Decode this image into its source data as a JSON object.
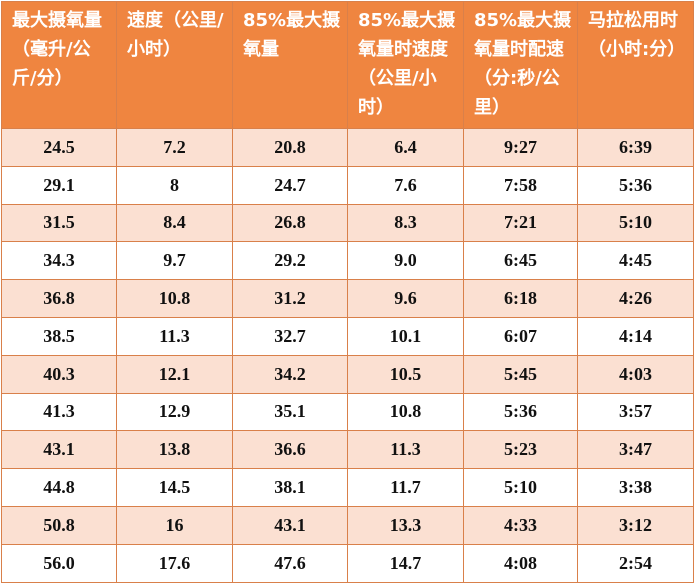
{
  "headers": [
    "最大摄氧量（毫升/公斤/分）",
    "速度（公里/小时）",
    "85%最大摄氧量",
    "85%最大摄氧量时速度（公里/小时）",
    "85%最大摄氧量时配速（分:秒/公里）",
    "马拉松用时（小时:分）"
  ],
  "rows": [
    [
      "24.5",
      "7.2",
      "20.8",
      "6.4",
      "9:27",
      "6:39"
    ],
    [
      "29.1",
      "8",
      "24.7",
      "7.6",
      "7:58",
      "5:36"
    ],
    [
      "31.5",
      "8.4",
      "26.8",
      "8.3",
      "7:21",
      "5:10"
    ],
    [
      "34.3",
      "9.7",
      "29.2",
      "9.0",
      "6:45",
      "4:45"
    ],
    [
      "36.8",
      "10.8",
      "31.2",
      "9.6",
      "6:18",
      "4:26"
    ],
    [
      "38.5",
      "11.3",
      "32.7",
      "10.1",
      "6:07",
      "4:14"
    ],
    [
      "40.3",
      "12.1",
      "34.2",
      "10.5",
      "5:45",
      "4:03"
    ],
    [
      "41.3",
      "12.9",
      "35.1",
      "10.8",
      "5:36",
      "3:57"
    ],
    [
      "43.1",
      "13.8",
      "36.6",
      "11.3",
      "5:23",
      "3:47"
    ],
    [
      "44.8",
      "14.5",
      "38.1",
      "11.7",
      "5:10",
      "3:38"
    ],
    [
      "50.8",
      "16",
      "43.1",
      "13.3",
      "4:33",
      "3:12"
    ],
    [
      "56.0",
      "17.6",
      "47.6",
      "14.7",
      "4:08",
      "2:54"
    ]
  ],
  "colors": {
    "header_bg": "#ef8540",
    "header_text": "#ffffff",
    "stripe_bg": "#fbe0d2",
    "border": "#d9804a"
  }
}
